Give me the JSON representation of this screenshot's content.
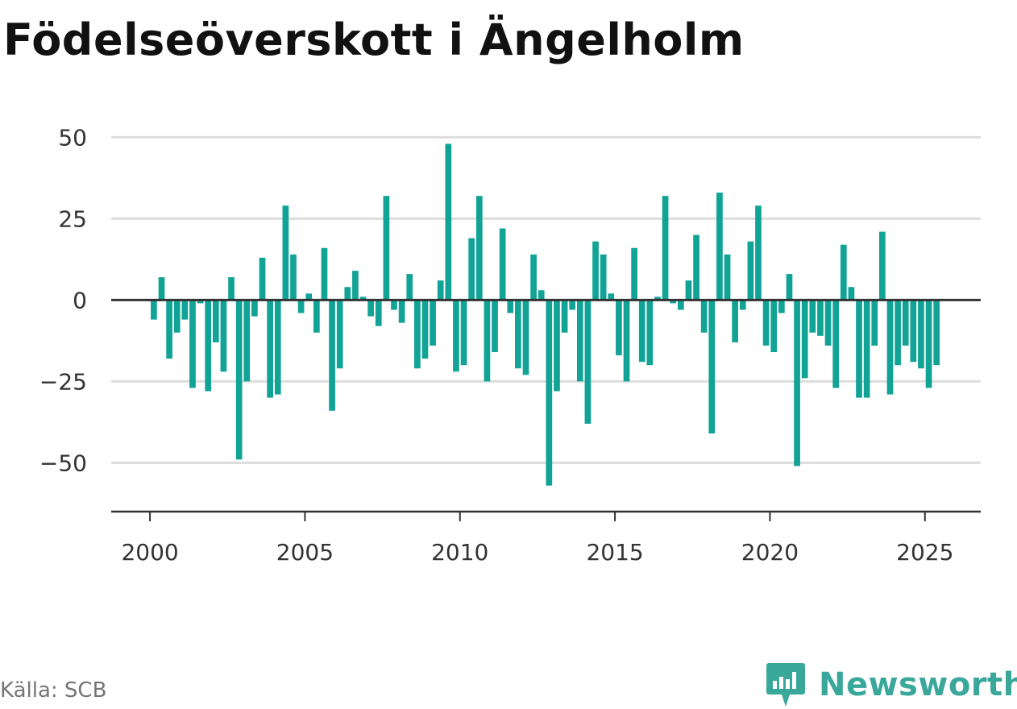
{
  "chart_data": {
    "type": "bar",
    "title": "Födelseöverskott i Ängelholm",
    "xlabel": "",
    "ylabel": "",
    "x_ticks": [
      "2000",
      "2005",
      "2010",
      "2015",
      "2020",
      "2025"
    ],
    "y_ticks": [
      "50",
      "25",
      "0",
      "−25",
      "−50"
    ],
    "ylim": [
      -65,
      60
    ],
    "xlim": [
      1998.75,
      2026.8
    ],
    "grid": true,
    "bar_color": "#11a396",
    "series": [
      {
        "x": [
          2000.125,
          2000.375,
          2000.625,
          2000.875,
          2001.125,
          2001.375,
          2001.625,
          2001.875,
          2002.125,
          2002.375,
          2002.625,
          2002.875,
          2003.125,
          2003.375,
          2003.625,
          2003.875,
          2004.125,
          2004.375,
          2004.625,
          2004.875,
          2005.125,
          2005.375,
          2005.625,
          2005.875,
          2006.125,
          2006.375,
          2006.625,
          2006.875,
          2007.125,
          2007.375,
          2007.625,
          2007.875,
          2008.125,
          2008.375,
          2008.625,
          2008.875,
          2009.125,
          2009.375,
          2009.625,
          2009.875,
          2010.125,
          2010.375,
          2010.625,
          2010.875,
          2011.125,
          2011.375,
          2011.625,
          2011.875,
          2012.125,
          2012.375,
          2012.625,
          2012.875,
          2013.125,
          2013.375,
          2013.625,
          2013.875,
          2014.125,
          2014.375,
          2014.625,
          2014.875,
          2015.125,
          2015.375,
          2015.625,
          2015.875,
          2016.125,
          2016.375,
          2016.625,
          2016.875,
          2017.125,
          2017.375,
          2017.625,
          2017.875,
          2018.125,
          2018.375,
          2018.625,
          2018.875,
          2019.125,
          2019.375,
          2019.625,
          2019.875,
          2020.125,
          2020.375,
          2020.625,
          2020.875,
          2021.125,
          2021.375,
          2021.625,
          2021.875,
          2022.125,
          2022.375,
          2022.625,
          2022.875,
          2023.125,
          2023.375,
          2023.625,
          2023.875,
          2024.125,
          2024.375,
          2024.625,
          2024.875,
          2025.125,
          2025.375
        ],
        "values": [
          -6,
          7,
          -18,
          -10,
          -6,
          -27,
          -1,
          -28,
          -13,
          -22,
          7,
          -49,
          -25,
          -5,
          13,
          -30,
          -29,
          29,
          14,
          -4,
          2,
          -10,
          16,
          -34,
          -21,
          4,
          9,
          1,
          -5,
          -8,
          32,
          -3,
          -7,
          8,
          -21,
          -18,
          -14,
          6,
          48,
          -22,
          -20,
          19,
          32,
          -25,
          -16,
          22,
          -4,
          -21,
          -23,
          14,
          3,
          -57,
          -28,
          -10,
          -3,
          -25,
          -38,
          18,
          14,
          2,
          -17,
          -25,
          16,
          -19,
          -20,
          1,
          32,
          -1,
          -3,
          6,
          20,
          -10,
          -41,
          33,
          14,
          -13,
          -3,
          18,
          29,
          -14,
          -16,
          -4,
          8,
          -51,
          -24,
          -10,
          -11,
          -14,
          -27,
          17,
          4,
          -30,
          -30,
          -14,
          21,
          -29,
          -20,
          -14,
          -19,
          -21,
          -27,
          -20
        ]
      }
    ]
  },
  "footer": {
    "source": "Källa: SCB",
    "brand": "Newsworthy"
  },
  "colors": {
    "bar": "#11a396",
    "grid": "#dddddd",
    "zero_line": "#333333",
    "axis": "#333333",
    "brand": "#3aa79b"
  },
  "icons": {
    "brand_logo": "bar-chart-pin-icon"
  }
}
